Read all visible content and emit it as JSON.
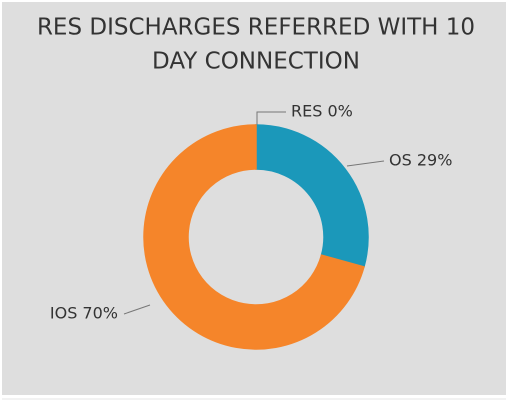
{
  "chart_data": {
    "type": "pie",
    "donut": true,
    "title": [
      "RES DISCHARGES REFERRED WITH 10",
      "DAY CONNECTION"
    ],
    "categories": [
      "RES",
      "OS",
      "IOS"
    ],
    "values": [
      0,
      29,
      70
    ],
    "value_labels": [
      "RES 0%",
      "OS 29%",
      "IOS 70%"
    ],
    "colors": [
      "#7b3f9e",
      "#1b98ba",
      "#f5852a"
    ]
  }
}
